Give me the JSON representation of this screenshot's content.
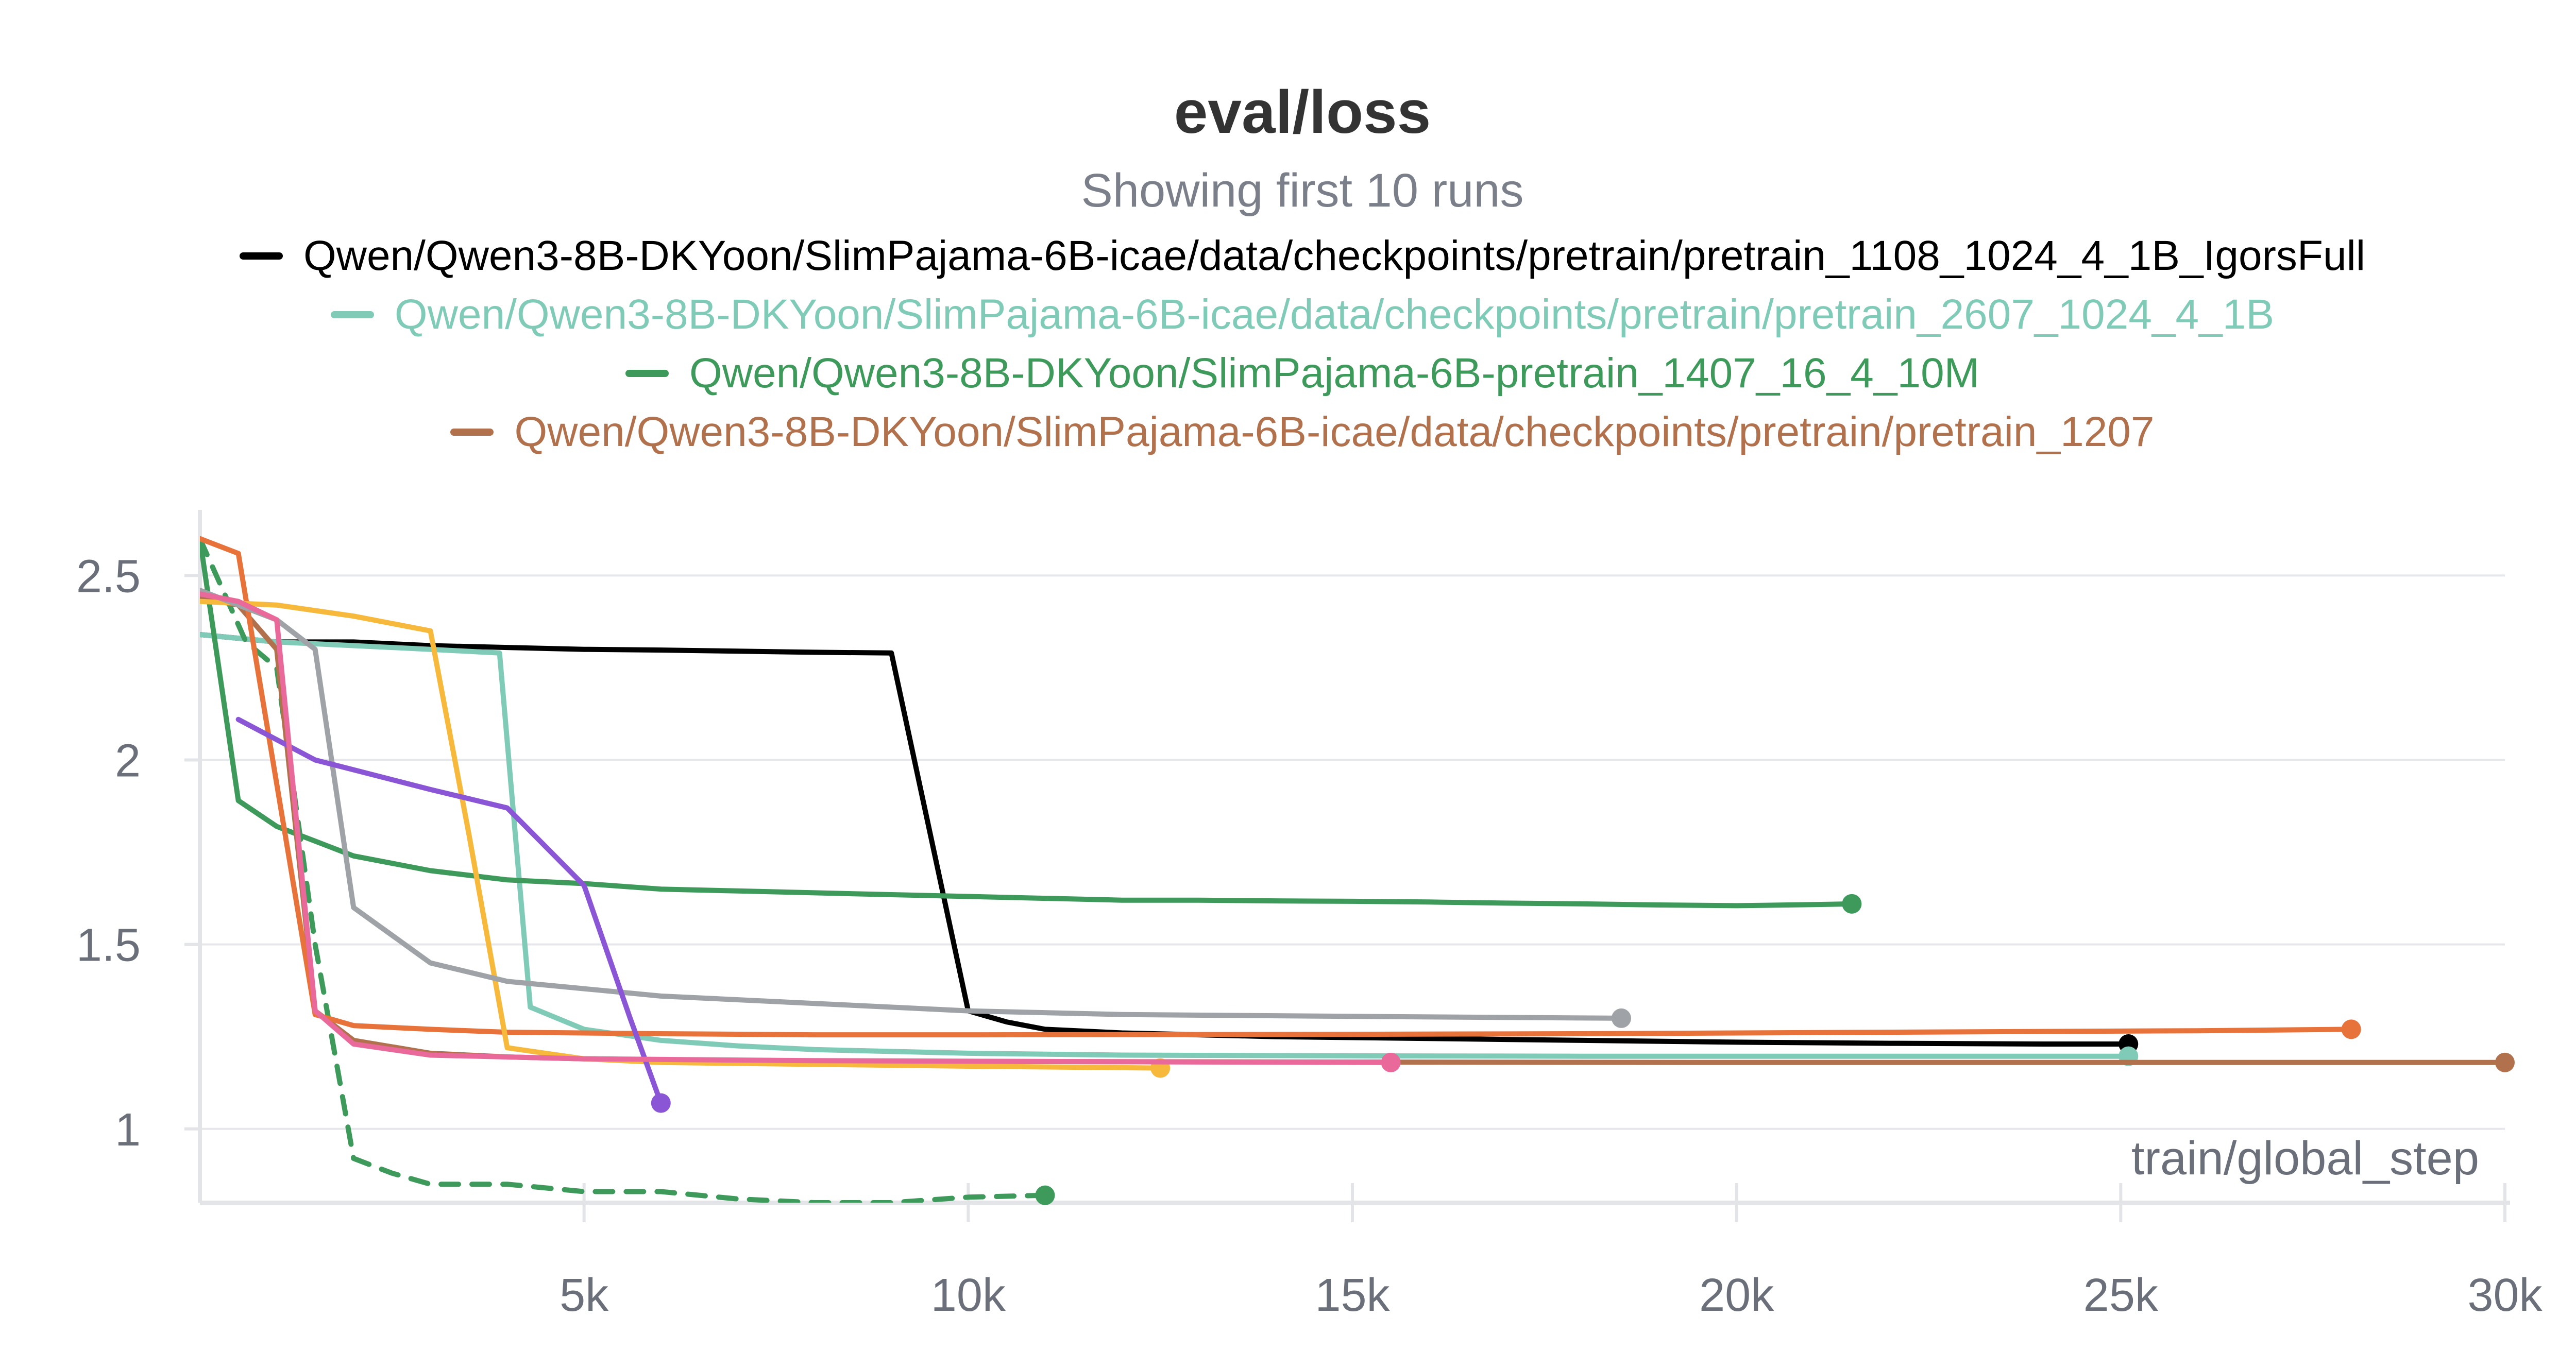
{
  "chart_data": {
    "type": "line",
    "title": "eval/loss",
    "subtitle": "Showing first 10 runs",
    "xlabel": "train/global_step",
    "ylabel": "",
    "xlim": [
      0,
      30000
    ],
    "ylim": [
      0.8,
      2.65
    ],
    "x_ticks": [
      5000,
      10000,
      15000,
      20000,
      25000,
      30000
    ],
    "x_tick_labels": [
      "5k",
      "10k",
      "15k",
      "20k",
      "25k",
      "30k"
    ],
    "y_ticks": [
      1,
      1.5,
      2,
      2.5
    ],
    "y_tick_labels": [
      "1",
      "1.5",
      "2",
      "2.5"
    ],
    "grid": true,
    "legend": [
      {
        "name": "Qwen/Qwen3-8B-DKYoon/SlimPajama-6B-icae/data/checkpoints/pretrain/pretrain_1108_1024_4_1B_IgorsFull",
        "color": "#000000"
      },
      {
        "name": "Qwen/Qwen3-8B-DKYoon/SlimPajama-6B-icae/data/checkpoints/pretrain/pretrain_2607_1024_4_1B",
        "color": "#7fcbb8"
      },
      {
        "name": "Qwen/Qwen3-8B-DKYoon/SlimPajama-6B-pretrain_1407_16_4_10M",
        "color": "#3d9a5a"
      },
      {
        "name": "Qwen/Qwen3-8B-DKYoon/SlimPajama-6B-icae/data/checkpoints/pretrain/pretrain_1207",
        "color": "#b0714c"
      }
    ],
    "series": [
      {
        "color": "#000000",
        "dashed": false,
        "x": [
          0,
          1000,
          2000,
          3000,
          4000,
          5000,
          6000,
          7000,
          8000,
          9000,
          10000,
          10500,
          11000,
          12000,
          14000,
          16000,
          18000,
          20000,
          22000,
          24000,
          25100
        ],
        "y": [
          2.34,
          2.32,
          2.32,
          2.31,
          2.305,
          2.3,
          2.298,
          2.295,
          2.292,
          2.29,
          1.32,
          1.29,
          1.27,
          1.26,
          1.25,
          1.245,
          1.24,
          1.235,
          1.232,
          1.23,
          1.23
        ]
      },
      {
        "color": "#7fcbb8",
        "dashed": false,
        "x": [
          0,
          1000,
          2000,
          3000,
          3900,
          4300,
          5000,
          6000,
          7000,
          8000,
          10000,
          12000,
          15000,
          18000,
          21000,
          25100
        ],
        "y": [
          2.34,
          2.32,
          2.31,
          2.3,
          2.29,
          1.33,
          1.27,
          1.24,
          1.225,
          1.215,
          1.205,
          1.2,
          1.198,
          1.197,
          1.197,
          1.197
        ]
      },
      {
        "color": "#3d9a5a",
        "dashed": false,
        "x": [
          0,
          500,
          1000,
          1500,
          2000,
          3000,
          4000,
          5000,
          6000,
          7000,
          8000,
          9000,
          10000,
          11000,
          12000,
          13000,
          14000,
          15000,
          16000,
          17000,
          18000,
          19000,
          20000,
          21000,
          21500
        ],
        "y": [
          2.6,
          1.89,
          1.82,
          1.78,
          1.74,
          1.7,
          1.675,
          1.665,
          1.65,
          1.645,
          1.64,
          1.635,
          1.63,
          1.625,
          1.62,
          1.62,
          1.618,
          1.617,
          1.615,
          1.612,
          1.61,
          1.607,
          1.605,
          1.608,
          1.61
        ]
      },
      {
        "color": "#3d9a5a",
        "dashed": true,
        "x": [
          0,
          600,
          1000,
          1500,
          2000,
          2500,
          3000,
          4000,
          5000,
          6000,
          7000,
          8000,
          9000,
          10000,
          11000
        ],
        "y": [
          2.6,
          2.32,
          2.25,
          1.5,
          0.92,
          0.88,
          0.85,
          0.85,
          0.83,
          0.83,
          0.81,
          0.8,
          0.8,
          0.815,
          0.82
        ]
      },
      {
        "color": "#b0714c",
        "dashed": false,
        "x": [
          0,
          500,
          1000,
          1500,
          2000,
          3000,
          4000,
          5000,
          7000,
          10000,
          15000,
          20000,
          25000,
          30000
        ],
        "y": [
          2.44,
          2.42,
          2.3,
          1.32,
          1.24,
          1.205,
          1.195,
          1.19,
          1.185,
          1.183,
          1.181,
          1.18,
          1.18,
          1.18
        ]
      },
      {
        "color": "#e8733a",
        "dashed": false,
        "x": [
          0,
          500,
          1500,
          2000,
          3000,
          4000,
          6000,
          8000,
          10000,
          14000,
          18000,
          22000,
          26000,
          28000
        ],
        "y": [
          2.6,
          2.56,
          1.31,
          1.28,
          1.27,
          1.262,
          1.258,
          1.255,
          1.255,
          1.256,
          1.258,
          1.262,
          1.266,
          1.27
        ]
      },
      {
        "color": "#f6b93b",
        "dashed": false,
        "x": [
          0,
          1000,
          2000,
          3000,
          3500,
          4000,
          5000,
          6000,
          8000,
          10000,
          12500
        ],
        "y": [
          2.43,
          2.42,
          2.39,
          2.35,
          1.8,
          1.22,
          1.19,
          1.18,
          1.175,
          1.17,
          1.165
        ]
      },
      {
        "color": "#9fa3a8",
        "dashed": false,
        "x": [
          0,
          1000,
          1500,
          2000,
          3000,
          4000,
          5000,
          6000,
          8000,
          10000,
          12000,
          15000,
          18500
        ],
        "y": [
          2.46,
          2.38,
          2.3,
          1.6,
          1.45,
          1.4,
          1.38,
          1.36,
          1.34,
          1.32,
          1.31,
          1.305,
          1.3
        ]
      },
      {
        "color": "#8a56d6",
        "dashed": false,
        "x": [
          500,
          1500,
          3000,
          4000,
          5000,
          5600,
          6000
        ],
        "y": [
          2.11,
          2.0,
          1.92,
          1.87,
          1.66,
          1.3,
          1.07
        ]
      },
      {
        "color": "#e8699a",
        "dashed": false,
        "x": [
          0,
          500,
          1000,
          1500,
          2000,
          3000,
          5000,
          8000,
          12000,
          15500
        ],
        "y": [
          2.45,
          2.43,
          2.38,
          1.32,
          1.23,
          1.2,
          1.19,
          1.185,
          1.182,
          1.18
        ]
      }
    ]
  }
}
